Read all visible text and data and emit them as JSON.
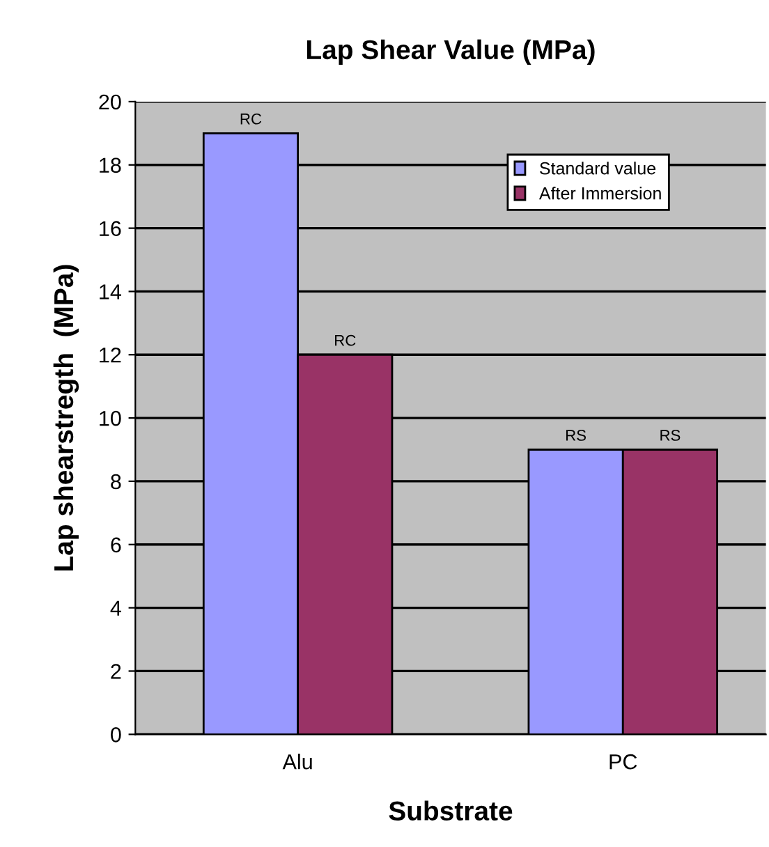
{
  "chart_data": {
    "type": "bar",
    "title": "Lap Shear Value (MPa)",
    "xlabel": "Substrate",
    "ylabel": "Lap shearstregth  (MPa)",
    "categories": [
      "Alu",
      "PC"
    ],
    "series": [
      {
        "name": "Standard value",
        "color": "#9999ff",
        "values": [
          19,
          9
        ],
        "value_labels": [
          "RC",
          "RS"
        ]
      },
      {
        "name": "After Immersion",
        "color": "#993366",
        "values": [
          12,
          9
        ],
        "value_labels": [
          "RC",
          "RS"
        ]
      }
    ],
    "ylim": [
      0,
      20
    ],
    "yticks": [
      0,
      2,
      4,
      6,
      8,
      10,
      12,
      14,
      16,
      18,
      20
    ],
    "grid": "y",
    "legend": "top right"
  }
}
